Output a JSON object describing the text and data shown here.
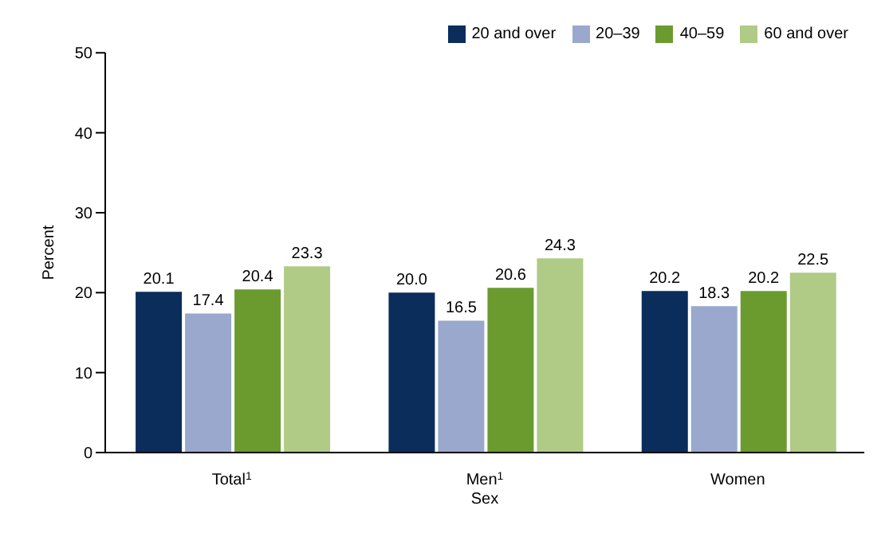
{
  "chart_data": {
    "type": "bar",
    "xlabel": "Sex",
    "ylabel": "Percent",
    "categories": [
      "Total$^{1}$",
      "Men$^{1}$",
      "Women"
    ],
    "series": [
      {
        "name": "20 and over",
        "color": "#0b2d5b",
        "values": [
          20.1,
          20.0,
          20.2
        ],
        "value_labels": [
          "20.1",
          "20.0",
          "20.2"
        ]
      },
      {
        "name": "20–39",
        "color": "#99a8cc",
        "values": [
          17.4,
          16.5,
          18.3
        ],
        "value_labels": [
          "17.4",
          "16.5",
          "18.3"
        ]
      },
      {
        "name": "40–59",
        "color": "#6b9b2f",
        "values": [
          20.4,
          20.6,
          20.2
        ],
        "value_labels": [
          "20.4",
          "20.6",
          "20.2"
        ]
      },
      {
        "name": "60 and over",
        "color": "#afcb86",
        "values": [
          23.3,
          24.3,
          22.5
        ],
        "value_labels": [
          "23.3",
          "24.3",
          "22.5"
        ]
      }
    ],
    "ylim": [
      0,
      50
    ],
    "yticks": [
      0,
      10,
      20,
      30,
      40,
      50
    ],
    "legend": "top right"
  }
}
